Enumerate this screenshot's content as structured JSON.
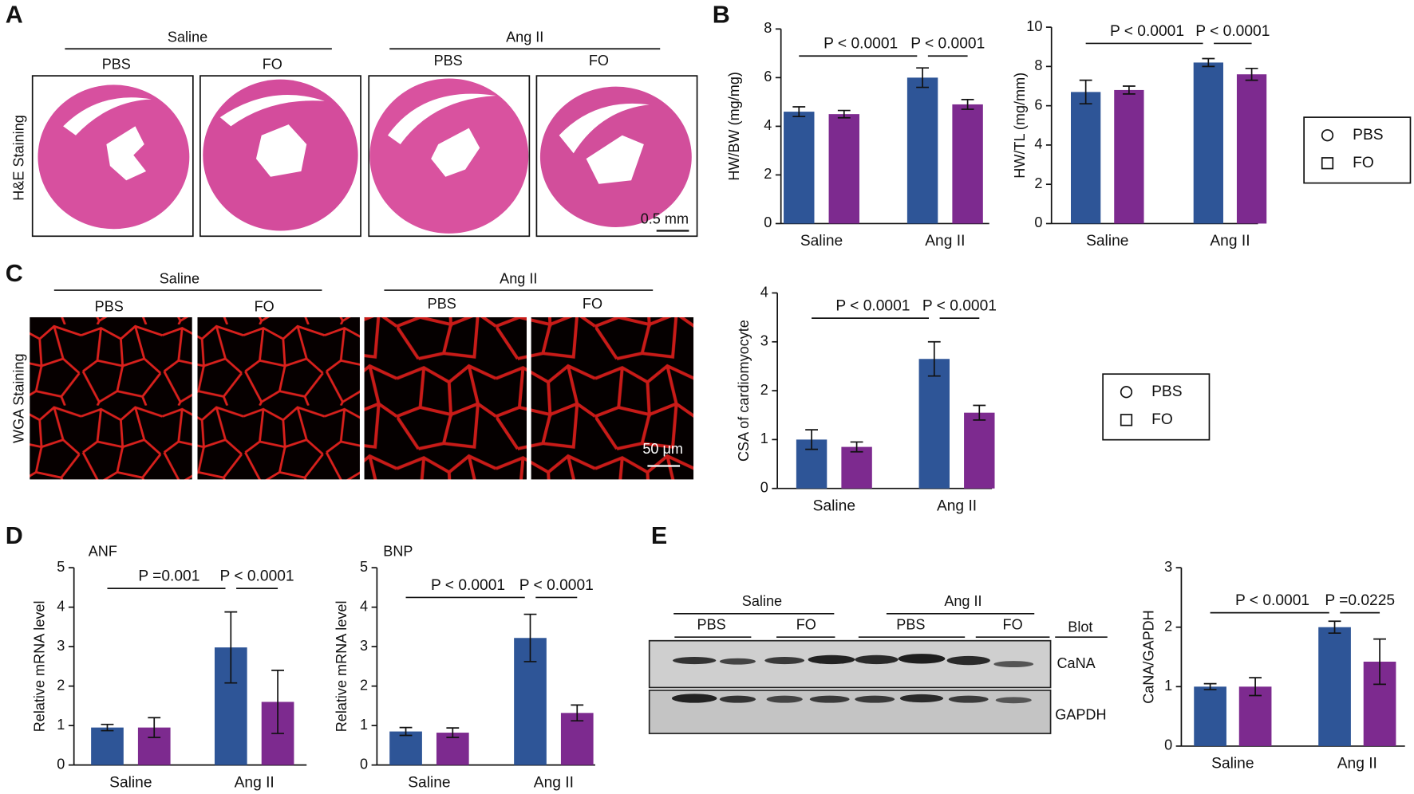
{
  "panel_a": {
    "label": "A",
    "groups": [
      "Saline",
      "Ang II"
    ],
    "treatments": [
      "PBS",
      "FO",
      "PBS",
      "FO"
    ],
    "stain": "H&E Staining",
    "scale_bar": "0.5 mm"
  },
  "panel_b": {
    "label": "B"
  },
  "panel_c": {
    "label": "C",
    "groups": [
      "Saline",
      "Ang II"
    ],
    "treatments": [
      "PBS",
      "FO",
      "PBS",
      "FO"
    ],
    "stain": "WGA Staining",
    "scale_bar": "50 μm"
  },
  "panel_d": {
    "label": "D"
  },
  "panel_e": {
    "label": "E",
    "groups": [
      "Saline",
      "Ang II"
    ],
    "treatments": [
      "PBS",
      "FO",
      "PBS",
      "FO"
    ],
    "blot_header": "Blot",
    "bands": [
      "CaNA",
      "GAPDH"
    ]
  },
  "chart_data": [
    {
      "type": "bar",
      "ylabel": "HW/BW (mg/mg)",
      "categories": [
        "Saline",
        "Ang II"
      ],
      "ylim": [
        0,
        8
      ],
      "yticks": [
        0,
        2,
        4,
        6,
        8
      ],
      "series": [
        {
          "name": "PBS",
          "color": "#2e5597",
          "marker": "circle",
          "values": [
            4.6,
            6.0
          ],
          "errors": [
            0.2,
            0.4
          ]
        },
        {
          "name": "FO",
          "color": "#7d2a8f",
          "marker": "square",
          "values": [
            4.5,
            4.9
          ],
          "errors": [
            0.15,
            0.2
          ]
        }
      ],
      "annotations": [
        "P < 0.0001",
        "P < 0.0001"
      ],
      "legend": false
    },
    {
      "type": "bar",
      "ylabel": "HW/TL (mg/mm)",
      "categories": [
        "Saline",
        "Ang II"
      ],
      "ylim": [
        0,
        10
      ],
      "yticks": [
        0,
        2,
        4,
        6,
        8,
        10
      ],
      "series": [
        {
          "name": "PBS",
          "color": "#2e5597",
          "marker": "circle",
          "values": [
            6.7,
            8.2
          ],
          "errors": [
            0.6,
            0.2
          ]
        },
        {
          "name": "FO",
          "color": "#7d2a8f",
          "marker": "square",
          "values": [
            6.8,
            7.6
          ],
          "errors": [
            0.2,
            0.3
          ]
        }
      ],
      "annotations": [
        "P < 0.0001",
        "P < 0.0001"
      ],
      "legend": true
    },
    {
      "type": "bar",
      "ylabel": "CSA of  cardiomyocyte",
      "categories": [
        "Saline",
        "Ang II"
      ],
      "ylim": [
        0,
        4
      ],
      "yticks": [
        0,
        1,
        2,
        3,
        4
      ],
      "series": [
        {
          "name": "PBS",
          "color": "#2e5597",
          "marker": "circle",
          "values": [
            1.0,
            2.65
          ],
          "errors": [
            0.2,
            0.35
          ]
        },
        {
          "name": "FO",
          "color": "#7d2a8f",
          "marker": "square",
          "values": [
            0.85,
            1.55
          ],
          "errors": [
            0.1,
            0.15
          ]
        }
      ],
      "annotations": [
        "P < 0.0001",
        "P < 0.0001"
      ],
      "legend": true
    },
    {
      "type": "bar",
      "title": "ANF",
      "ylabel": "Relative mRNA level",
      "categories": [
        "Saline",
        "Ang II"
      ],
      "ylim": [
        0,
        5
      ],
      "yticks": [
        0,
        1,
        2,
        3,
        4,
        5
      ],
      "series": [
        {
          "name": "PBS",
          "color": "#2e5597",
          "marker": "circle",
          "values": [
            0.95,
            2.98
          ],
          "errors": [
            0.08,
            0.9
          ]
        },
        {
          "name": "FO",
          "color": "#7d2a8f",
          "marker": "square",
          "values": [
            0.95,
            1.6
          ],
          "errors": [
            0.25,
            0.8
          ]
        }
      ],
      "annotations": [
        "P =0.001",
        "P < 0.0001"
      ],
      "legend": false
    },
    {
      "type": "bar",
      "title": "BNP",
      "ylabel": "Relative mRNA level",
      "categories": [
        "Saline",
        "Ang II"
      ],
      "ylim": [
        0,
        5
      ],
      "yticks": [
        0,
        1,
        2,
        3,
        4,
        5
      ],
      "series": [
        {
          "name": "PBS",
          "color": "#2e5597",
          "marker": "circle",
          "values": [
            0.85,
            3.22
          ],
          "errors": [
            0.1,
            0.6
          ]
        },
        {
          "name": "FO",
          "color": "#7d2a8f",
          "marker": "square",
          "values": [
            0.82,
            1.32
          ],
          "errors": [
            0.12,
            0.2
          ]
        }
      ],
      "annotations": [
        "P < 0.0001",
        "P < 0.0001"
      ],
      "legend": false
    },
    {
      "type": "bar",
      "ylabel": "CaNA/GAPDH",
      "categories": [
        "Saline",
        "Ang II"
      ],
      "ylim": [
        0,
        3
      ],
      "yticks": [
        0,
        1,
        2,
        3
      ],
      "series": [
        {
          "name": "PBS",
          "color": "#2e5597",
          "marker": "circle",
          "values": [
            1.0,
            2.0
          ],
          "errors": [
            0.05,
            0.1
          ]
        },
        {
          "name": "FO",
          "color": "#7d2a8f",
          "marker": "square",
          "values": [
            1.0,
            1.42
          ],
          "errors": [
            0.15,
            0.38
          ]
        }
      ],
      "annotations": [
        "P < 0.0001",
        "P =0.0225"
      ],
      "legend": false
    }
  ]
}
